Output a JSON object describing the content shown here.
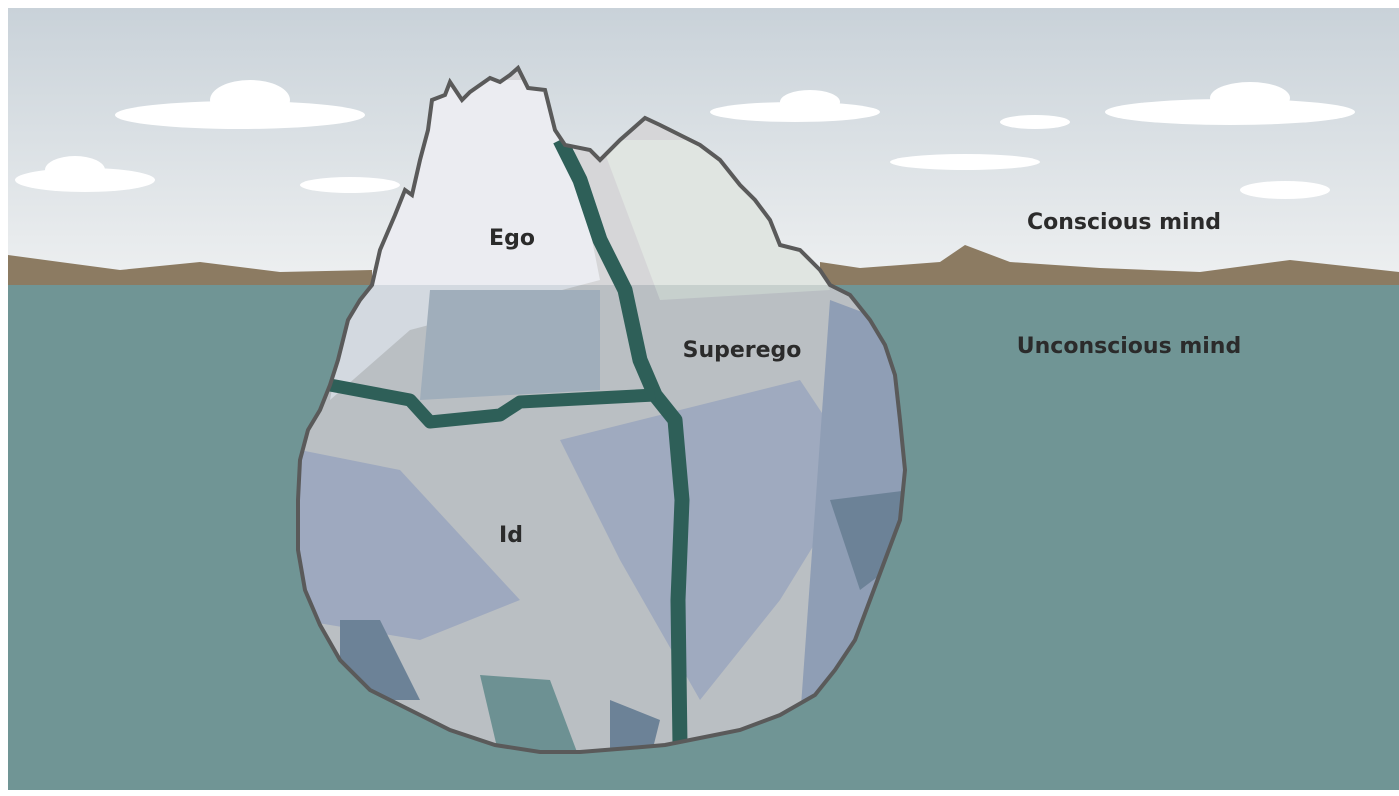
{
  "labels": {
    "ego": "Ego",
    "superego": "Superego",
    "id": "Id"
  },
  "levels": {
    "conscious": "Conscious mind",
    "unconscious": "Unconscious mind"
  }
}
